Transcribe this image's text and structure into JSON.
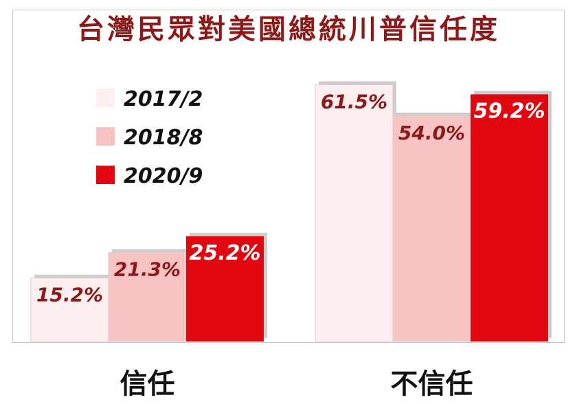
{
  "chart_data": {
    "type": "bar",
    "title": "台灣民眾對美國總統川普信任度",
    "categories": [
      "信任",
      "不信任"
    ],
    "series": [
      {
        "name": "2017/2",
        "values": [
          15.2,
          61.5
        ],
        "color": "#fdeff0"
      },
      {
        "name": "2018/8",
        "values": [
          21.3,
          54.0
        ],
        "color": "#f8c3c3"
      },
      {
        "name": "2020/9",
        "values": [
          25.2,
          59.2
        ],
        "color": "#e00710"
      }
    ],
    "value_labels": [
      [
        "15.2%",
        "61.5%"
      ],
      [
        "21.3%",
        "54.0%"
      ],
      [
        "25.2%",
        "59.2%"
      ]
    ],
    "ylim": [
      0,
      66
    ],
    "legend": "top-left",
    "grid": false
  }
}
